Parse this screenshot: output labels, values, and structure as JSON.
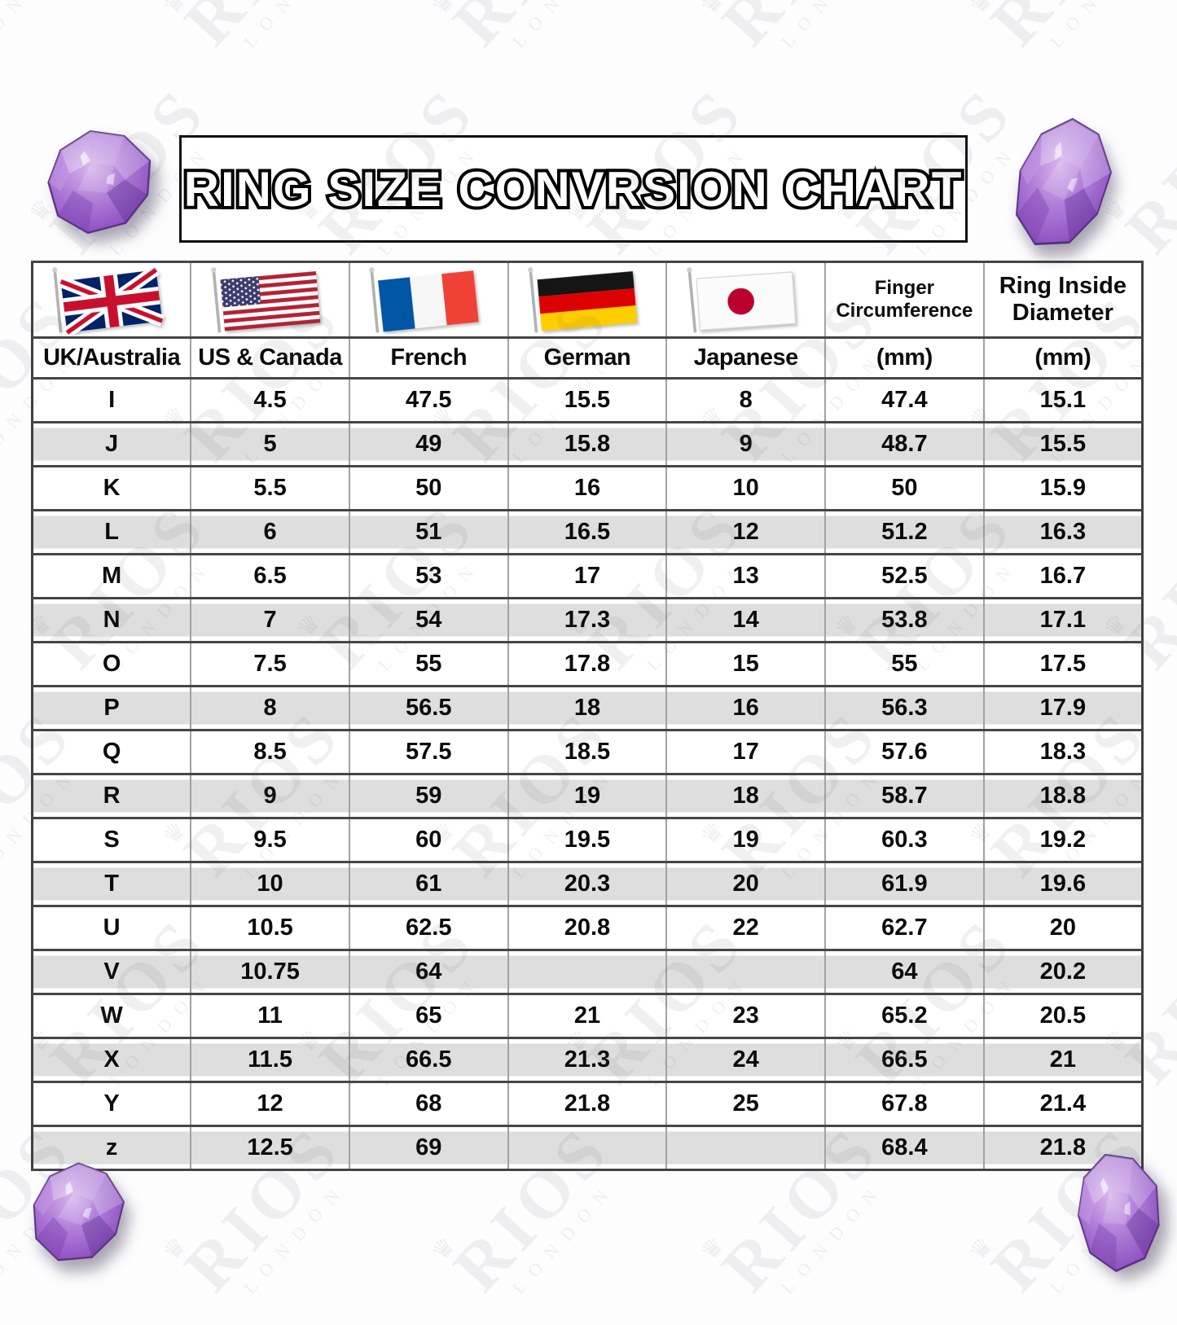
{
  "chart_data": {
    "type": "table",
    "title": "RING SIZE CONVRSION CHART",
    "column_groups": {
      "finger_circumference": "Finger Circumference",
      "ring_inside_diameter": "Ring Inside Diameter"
    },
    "columns": [
      "UK/Australia",
      "US & Canada",
      "French",
      "German",
      "Japanese",
      "(mm)",
      "(mm)"
    ],
    "flag_icons": [
      "uk-flag-icon",
      "us-flag-icon",
      "france-flag-icon",
      "germany-flag-icon",
      "japan-flag-icon"
    ],
    "rows": [
      [
        "I",
        "4.5",
        "47.5",
        "15.5",
        "8",
        "47.4",
        "15.1"
      ],
      [
        "J",
        "5",
        "49",
        "15.8",
        "9",
        "48.7",
        "15.5"
      ],
      [
        "K",
        "5.5",
        "50",
        "16",
        "10",
        "50",
        "15.9"
      ],
      [
        "L",
        "6",
        "51",
        "16.5",
        "12",
        "51.2",
        "16.3"
      ],
      [
        "M",
        "6.5",
        "53",
        "17",
        "13",
        "52.5",
        "16.7"
      ],
      [
        "N",
        "7",
        "54",
        "17.3",
        "14",
        "53.8",
        "17.1"
      ],
      [
        "O",
        "7.5",
        "55",
        "17.8",
        "15",
        "55",
        "17.5"
      ],
      [
        "P",
        "8",
        "56.5",
        "18",
        "16",
        "56.3",
        "17.9"
      ],
      [
        "Q",
        "8.5",
        "57.5",
        "18.5",
        "17",
        "57.6",
        "18.3"
      ],
      [
        "R",
        "9",
        "59",
        "19",
        "18",
        "58.7",
        "18.8"
      ],
      [
        "S",
        "9.5",
        "60",
        "19.5",
        "19",
        "60.3",
        "19.2"
      ],
      [
        "T",
        "10",
        "61",
        "20.3",
        "20",
        "61.9",
        "19.6"
      ],
      [
        "U",
        "10.5",
        "62.5",
        "20.8",
        "22",
        "62.7",
        "20"
      ],
      [
        "V",
        "10.75",
        "64",
        "",
        "",
        "64",
        "20.2"
      ],
      [
        "W",
        "11",
        "65",
        "21",
        "23",
        "65.2",
        "20.5"
      ],
      [
        "X",
        "11.5",
        "66.5",
        "21.3",
        "24",
        "66.5",
        "21"
      ],
      [
        "Y",
        "12",
        "68",
        "21.8",
        "25",
        "67.8",
        "21.4"
      ],
      [
        "z",
        "12.5",
        "69",
        "",
        "",
        "68.4",
        "21.8"
      ]
    ]
  },
  "watermark": {
    "brand": "RIOS",
    "city": "LONDON",
    "crown_icon": "crown-icon"
  },
  "colors": {
    "row_alt": "#dedede",
    "border_dark": "#454545",
    "border_light": "#a2a2a2",
    "amethyst": "#9b59c9",
    "uk_blue": "#012169",
    "uk_red": "#C8102E",
    "us_red": "#B22234",
    "us_blue": "#3C3B6E",
    "fr_blue": "#0055A4",
    "fr_red": "#EF4135",
    "de_red": "#DD0000",
    "de_gold": "#FFCE00",
    "jp_red": "#BC002D"
  }
}
